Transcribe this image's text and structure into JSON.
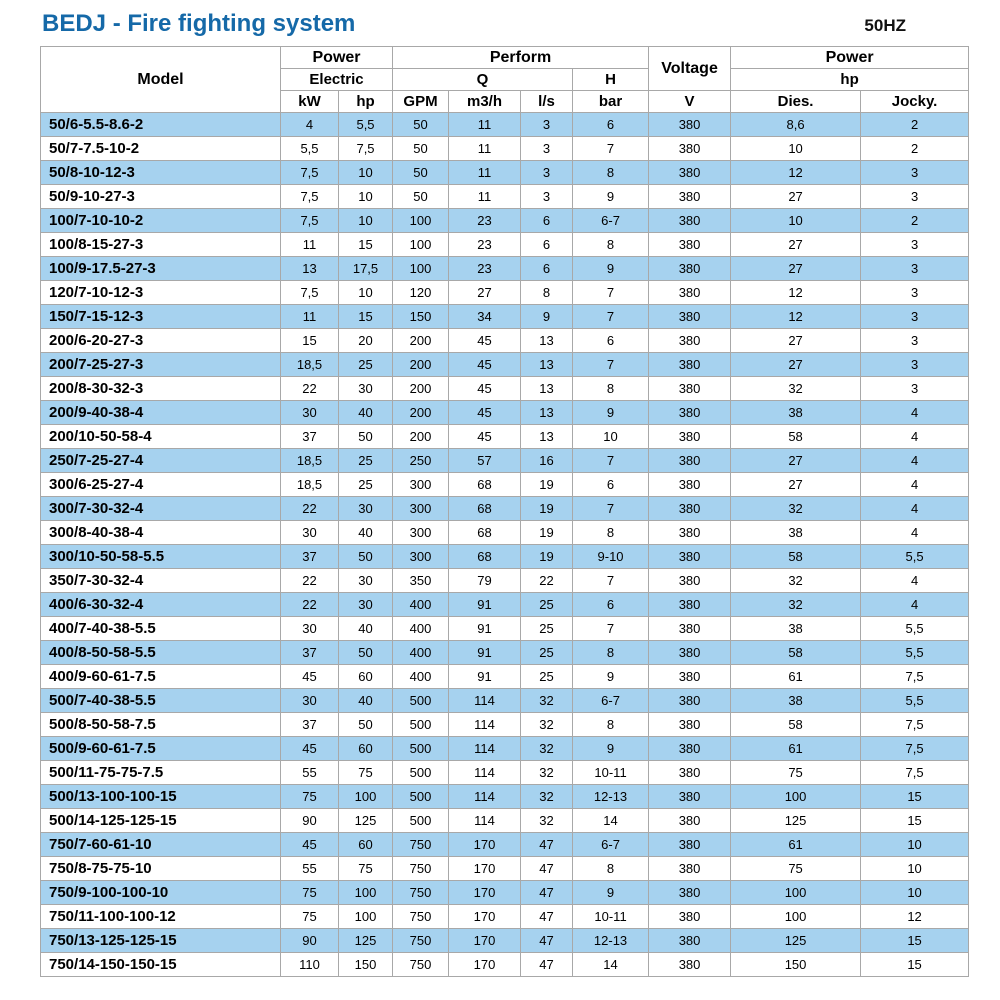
{
  "page": {
    "title": "BEDJ - Fire fighting system",
    "frequency": "50HZ"
  },
  "colors": {
    "title_blue": "#1569a8",
    "row_alt_blue": "#a6d2ef",
    "border_gray": "#a8a8a8"
  },
  "table": {
    "headers": {
      "model": "Model",
      "power_left": "Power",
      "electric": "Electric",
      "perform": "Perform",
      "q": "Q",
      "h": "H",
      "voltage": "Voltage",
      "power_right": "Power",
      "hp_group": "hp",
      "units": [
        "kW",
        "hp",
        "GPM",
        "m3/h",
        "l/s",
        "bar",
        "V",
        "Dies.",
        "Jocky."
      ]
    },
    "rows": [
      [
        "50/6-5.5-8.6-2",
        "4",
        "5,5",
        "50",
        "11",
        "3",
        "6",
        "380",
        "8,6",
        "2"
      ],
      [
        "50/7-7.5-10-2",
        "5,5",
        "7,5",
        "50",
        "11",
        "3",
        "7",
        "380",
        "10",
        "2"
      ],
      [
        "50/8-10-12-3",
        "7,5",
        "10",
        "50",
        "11",
        "3",
        "8",
        "380",
        "12",
        "3"
      ],
      [
        "50/9-10-27-3",
        "7,5",
        "10",
        "50",
        "11",
        "3",
        "9",
        "380",
        "27",
        "3"
      ],
      [
        "100/7-10-10-2",
        "7,5",
        "10",
        "100",
        "23",
        "6",
        "6-7",
        "380",
        "10",
        "2"
      ],
      [
        "100/8-15-27-3",
        "11",
        "15",
        "100",
        "23",
        "6",
        "8",
        "380",
        "27",
        "3"
      ],
      [
        "100/9-17.5-27-3",
        "13",
        "17,5",
        "100",
        "23",
        "6",
        "9",
        "380",
        "27",
        "3"
      ],
      [
        "120/7-10-12-3",
        "7,5",
        "10",
        "120",
        "27",
        "8",
        "7",
        "380",
        "12",
        "3"
      ],
      [
        "150/7-15-12-3",
        "11",
        "15",
        "150",
        "34",
        "9",
        "7",
        "380",
        "12",
        "3"
      ],
      [
        "200/6-20-27-3",
        "15",
        "20",
        "200",
        "45",
        "13",
        "6",
        "380",
        "27",
        "3"
      ],
      [
        "200/7-25-27-3",
        "18,5",
        "25",
        "200",
        "45",
        "13",
        "7",
        "380",
        "27",
        "3"
      ],
      [
        "200/8-30-32-3",
        "22",
        "30",
        "200",
        "45",
        "13",
        "8",
        "380",
        "32",
        "3"
      ],
      [
        "200/9-40-38-4",
        "30",
        "40",
        "200",
        "45",
        "13",
        "9",
        "380",
        "38",
        "4"
      ],
      [
        "200/10-50-58-4",
        "37",
        "50",
        "200",
        "45",
        "13",
        "10",
        "380",
        "58",
        "4"
      ],
      [
        "250/7-25-27-4",
        "18,5",
        "25",
        "250",
        "57",
        "16",
        "7",
        "380",
        "27",
        "4"
      ],
      [
        "300/6-25-27-4",
        "18,5",
        "25",
        "300",
        "68",
        "19",
        "6",
        "380",
        "27",
        "4"
      ],
      [
        "300/7-30-32-4",
        "22",
        "30",
        "300",
        "68",
        "19",
        "7",
        "380",
        "32",
        "4"
      ],
      [
        "300/8-40-38-4",
        "30",
        "40",
        "300",
        "68",
        "19",
        "8",
        "380",
        "38",
        "4"
      ],
      [
        "300/10-50-58-5.5",
        "37",
        "50",
        "300",
        "68",
        "19",
        "9-10",
        "380",
        "58",
        "5,5"
      ],
      [
        "350/7-30-32-4",
        "22",
        "30",
        "350",
        "79",
        "22",
        "7",
        "380",
        "32",
        "4"
      ],
      [
        "400/6-30-32-4",
        "22",
        "30",
        "400",
        "91",
        "25",
        "6",
        "380",
        "32",
        "4"
      ],
      [
        "400/7-40-38-5.5",
        "30",
        "40",
        "400",
        "91",
        "25",
        "7",
        "380",
        "38",
        "5,5"
      ],
      [
        "400/8-50-58-5.5",
        "37",
        "50",
        "400",
        "91",
        "25",
        "8",
        "380",
        "58",
        "5,5"
      ],
      [
        "400/9-60-61-7.5",
        "45",
        "60",
        "400",
        "91",
        "25",
        "9",
        "380",
        "61",
        "7,5"
      ],
      [
        "500/7-40-38-5.5",
        "30",
        "40",
        "500",
        "114",
        "32",
        "6-7",
        "380",
        "38",
        "5,5"
      ],
      [
        "500/8-50-58-7.5",
        "37",
        "50",
        "500",
        "114",
        "32",
        "8",
        "380",
        "58",
        "7,5"
      ],
      [
        "500/9-60-61-7.5",
        "45",
        "60",
        "500",
        "114",
        "32",
        "9",
        "380",
        "61",
        "7,5"
      ],
      [
        "500/11-75-75-7.5",
        "55",
        "75",
        "500",
        "114",
        "32",
        "10-11",
        "380",
        "75",
        "7,5"
      ],
      [
        "500/13-100-100-15",
        "75",
        "100",
        "500",
        "114",
        "32",
        "12-13",
        "380",
        "100",
        "15"
      ],
      [
        "500/14-125-125-15",
        "90",
        "125",
        "500",
        "114",
        "32",
        "14",
        "380",
        "125",
        "15"
      ],
      [
        "750/7-60-61-10",
        "45",
        "60",
        "750",
        "170",
        "47",
        "6-7",
        "380",
        "61",
        "10"
      ],
      [
        "750/8-75-75-10",
        "55",
        "75",
        "750",
        "170",
        "47",
        "8",
        "380",
        "75",
        "10"
      ],
      [
        "750/9-100-100-10",
        "75",
        "100",
        "750",
        "170",
        "47",
        "9",
        "380",
        "100",
        "10"
      ],
      [
        "750/11-100-100-12",
        "75",
        "100",
        "750",
        "170",
        "47",
        "10-11",
        "380",
        "100",
        "12"
      ],
      [
        "750/13-125-125-15",
        "90",
        "125",
        "750",
        "170",
        "47",
        "12-13",
        "380",
        "125",
        "15"
      ],
      [
        "750/14-150-150-15",
        "110",
        "150",
        "750",
        "170",
        "47",
        "14",
        "380",
        "150",
        "15"
      ]
    ]
  }
}
